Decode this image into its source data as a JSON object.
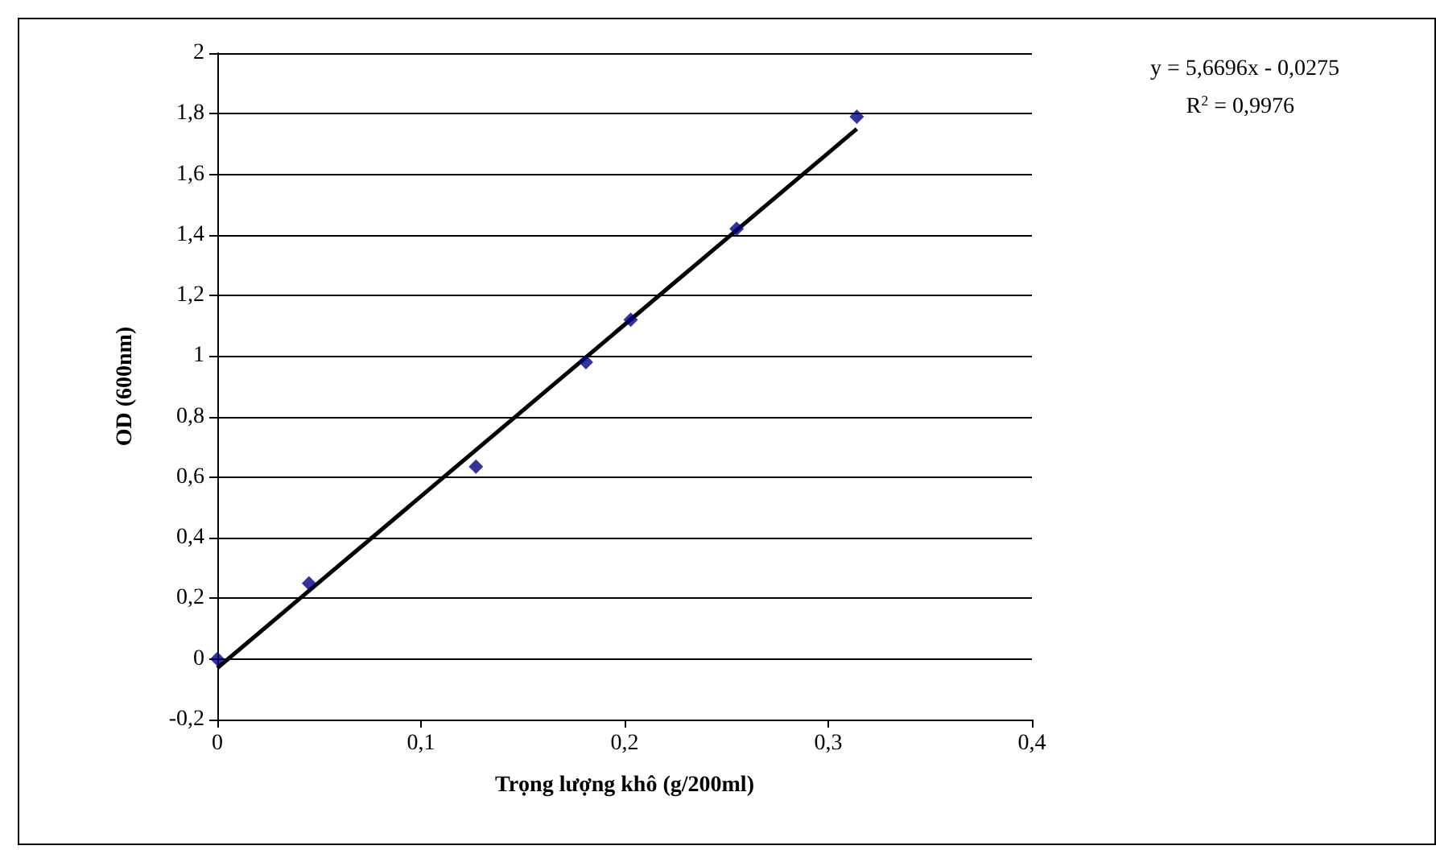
{
  "chart_data": {
    "type": "scatter",
    "xlabel": "Trọng lượng khô (g/200ml)",
    "ylabel": "OD (600nm)",
    "xlim": [
      0,
      0.4
    ],
    "xticks": [
      {
        "value": 0,
        "label": "0"
      },
      {
        "value": 0.1,
        "label": "0,1"
      },
      {
        "value": 0.2,
        "label": "0,2"
      },
      {
        "value": 0.3,
        "label": "0,3"
      },
      {
        "value": 0.4,
        "label": "0,4"
      }
    ],
    "ylim": [
      -0.2,
      2
    ],
    "yticks": [
      {
        "value": -0.2,
        "label": "-0,2"
      },
      {
        "value": 0,
        "label": "0"
      },
      {
        "value": 0.2,
        "label": "0,2"
      },
      {
        "value": 0.4,
        "label": "0,4"
      },
      {
        "value": 0.6,
        "label": "0,6"
      },
      {
        "value": 0.8,
        "label": "0,8"
      },
      {
        "value": 1,
        "label": "1"
      },
      {
        "value": 1.2,
        "label": "1,2"
      },
      {
        "value": 1.4,
        "label": "1,4"
      },
      {
        "value": 1.6,
        "label": "1,6"
      },
      {
        "value": 1.8,
        "label": "1,8"
      },
      {
        "value": 2,
        "label": "2"
      }
    ],
    "grid": "y",
    "marker": "diamond",
    "series": [
      {
        "color": "#000080",
        "x": [
          0,
          0.045,
          0.127,
          0.181,
          0.203,
          0.255,
          0.314
        ],
        "values": [
          0,
          0.25,
          0.635,
          0.98,
          1.12,
          1.42,
          1.79
        ]
      },
      {
        "type": "line",
        "marker": "none",
        "color": "#000000",
        "x": [
          0,
          0.314
        ],
        "values": [
          -0.03,
          1.75
        ]
      }
    ],
    "annotations": [
      "y = 5,6696x - 0,0275",
      "R$^{2}$ = 0,9976"
    ]
  }
}
